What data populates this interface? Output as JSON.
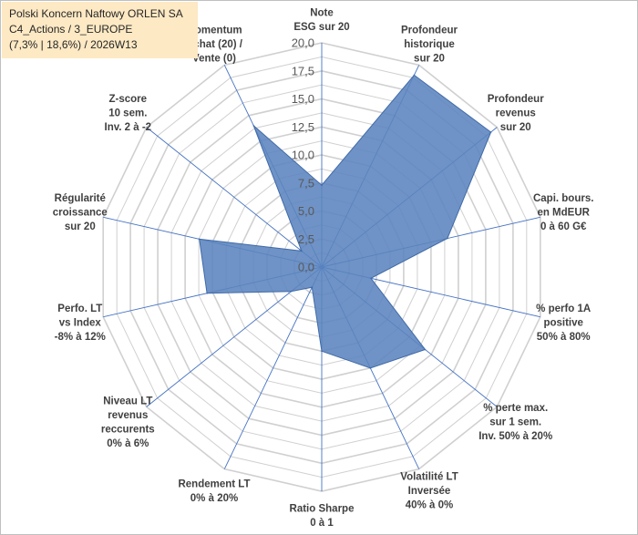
{
  "title": {
    "line1": "Polski Koncern Naftowy ORLEN SA",
    "line2": "C4_Actions / 3_EUROPE",
    "line3": "(7,3% | 18,6%) / 2026W13"
  },
  "colors": {
    "fill": "#5b84be",
    "stroke": "#3f6aa8",
    "grid": "#d0d0d0",
    "axis": "#4472c4",
    "title_bg": "#fde9c4"
  },
  "chart_data": {
    "type": "radar",
    "range": [
      0,
      20
    ],
    "ticks": [
      "0,0",
      "2,5",
      "5,0",
      "7,5",
      "10,0",
      "12,5",
      "15,0",
      "17,5",
      "20,0"
    ],
    "axes": [
      {
        "label": [
          "Note",
          "ESG sur 20"
        ],
        "value": 7.3
      },
      {
        "label": [
          "Profondeur",
          "historique",
          "sur 20"
        ],
        "value": 19.0
      },
      {
        "label": [
          "Profondeur",
          "revenus",
          "sur 20"
        ],
        "value": 19.3
      },
      {
        "label": [
          "Capi. bours.",
          "en MdEUR",
          "0 à 60 G€"
        ],
        "value": 11.5
      },
      {
        "label": [
          "% perfo 1A",
          "positive",
          "50% à 80%"
        ],
        "value": 4.5
      },
      {
        "label": [
          "% perte max.",
          "sur 1 sem.",
          "Inv. 50% à 20%"
        ],
        "value": 11.8
      },
      {
        "label": [
          "Volatilité LT",
          "Inversée",
          "40% à 0%"
        ],
        "value": 10.0
      },
      {
        "label": [
          "Ratio Sharpe",
          "0 à 1"
        ],
        "value": 7.5
      },
      {
        "label": [
          "Rendement LT",
          "0% à 20%"
        ],
        "value": 2.0
      },
      {
        "label": [
          "Niveau LT",
          "revenus",
          "reccurents",
          "0% à 6%"
        ],
        "value": 3.5
      },
      {
        "label": [
          "Perfo. LT",
          "vs Index",
          "-8% à 12%"
        ],
        "value": 10.5
      },
      {
        "label": [
          "Régularité",
          "croissance",
          "sur 20"
        ],
        "value": 11.2
      },
      {
        "label": [
          "Z-score",
          "10 sem.",
          "Inv. 2 à -2"
        ],
        "value": 2.3
      },
      {
        "label": [
          "Momentum",
          "Achat (20) /",
          "Vente (0)"
        ],
        "value": 14.0
      }
    ]
  }
}
